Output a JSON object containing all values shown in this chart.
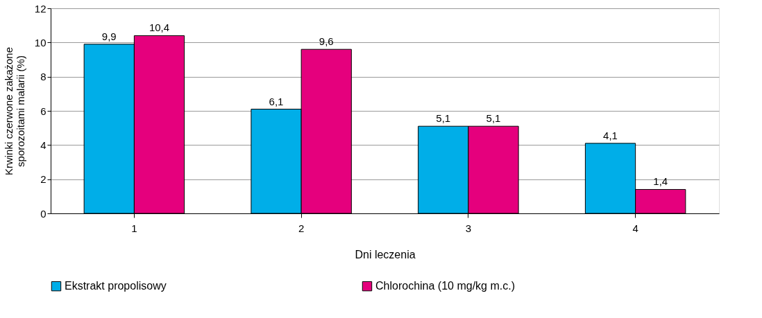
{
  "chart_data": {
    "type": "bar",
    "xlabel": "Dni leczenia",
    "ylabel": "Krwinki czerwone zakażone sporozoitami malarii (%)",
    "categories": [
      "1",
      "2",
      "3",
      "4"
    ],
    "series": [
      {
        "name": "Ekstrakt propolisowy",
        "color": "#00aee8",
        "values": [
          9.9,
          6.1,
          5.1,
          4.1
        ],
        "value_labels": [
          "9,9",
          "6,1",
          "5,1",
          "4,1"
        ]
      },
      {
        "name": "Chlorochina (10 mg/kg m.c.)",
        "color": "#e5007d",
        "values": [
          10.4,
          9.6,
          5.1,
          1.4
        ],
        "value_labels": [
          "10,4",
          "9,6",
          "5,1",
          "1,4"
        ]
      }
    ],
    "ylim": [
      0,
      12
    ],
    "yticks": [
      0,
      2,
      4,
      6,
      8,
      10,
      12
    ],
    "grid": "y",
    "legend": "bottom"
  }
}
